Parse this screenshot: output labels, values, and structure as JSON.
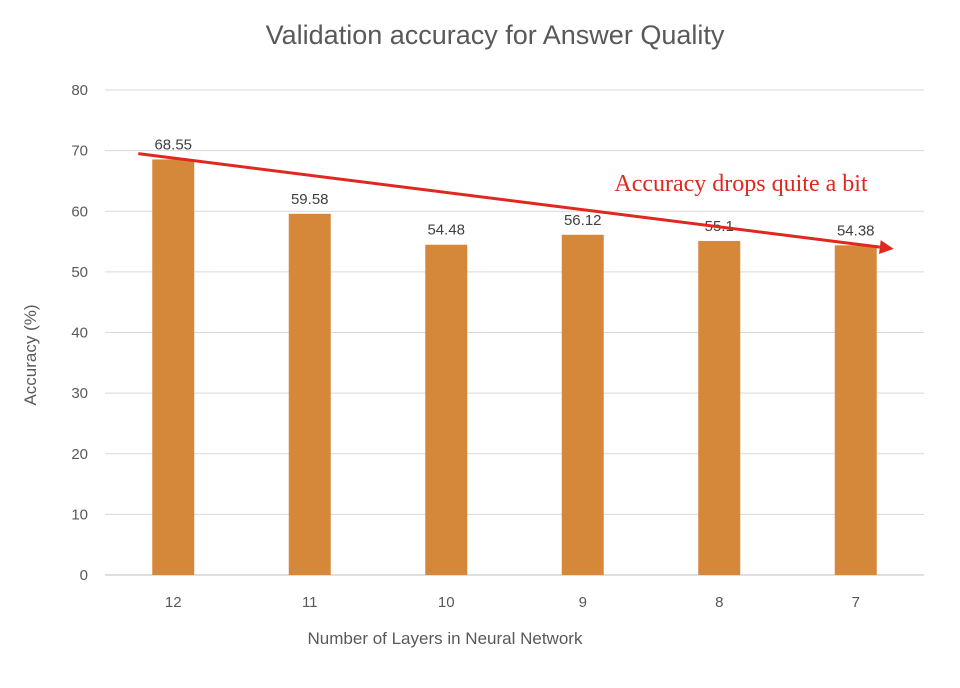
{
  "chart_data": {
    "type": "bar",
    "title": "Validation accuracy for Answer Quality",
    "xlabel": "Number of Layers in Neural Network",
    "ylabel": "Accuracy (%)",
    "categories": [
      "12",
      "11",
      "10",
      "9",
      "8",
      "7"
    ],
    "values": [
      68.55,
      59.58,
      54.48,
      56.12,
      55.1,
      54.38
    ],
    "value_labels": [
      "68.55",
      "59.58",
      "54.48",
      "56.12",
      "55.1",
      "54.38"
    ],
    "ylim": [
      0,
      80
    ],
    "yticks": [
      0,
      10,
      20,
      30,
      40,
      50,
      60,
      70,
      80
    ],
    "grid": true,
    "legend": "none",
    "bar_color": "#D5883A",
    "annotation": {
      "text": "Accuracy drops quite a bit",
      "color": "#E0281E",
      "arrow_from": {
        "category": "12",
        "value": 69.5
      },
      "arrow_to": {
        "category": "7",
        "value": 53.8
      }
    }
  }
}
